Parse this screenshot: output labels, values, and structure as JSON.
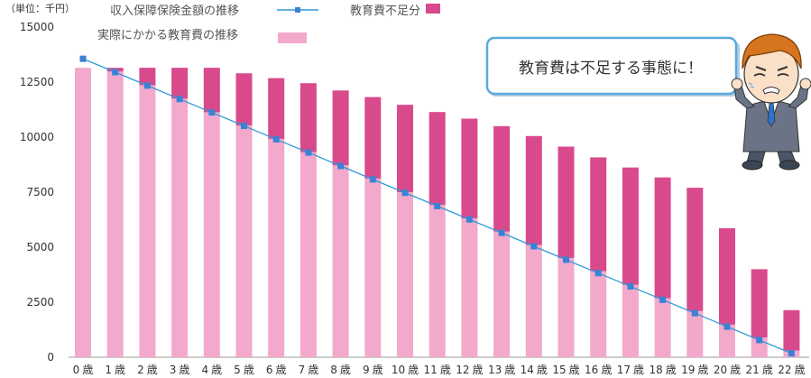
{
  "chart_data": {
    "type": "bar",
    "unit_label": "（単位：千円）",
    "categories": [
      "0歳",
      "1歳",
      "2歳",
      "3歳",
      "4歳",
      "5歳",
      "6歳",
      "7歳",
      "8歳",
      "9歳",
      "10歳",
      "11歳",
      "12歳",
      "13歳",
      "14歳",
      "15歳",
      "16歳",
      "17歳",
      "18歳",
      "19歳",
      "20歳",
      "21歳",
      "22歳"
    ],
    "y_ticks": [
      0,
      2500,
      5000,
      7500,
      10000,
      12500,
      15000
    ],
    "ylim": [
      0,
      15000
    ],
    "series": [
      {
        "name": "実際にかかる教育費の推移",
        "kind": "bar",
        "color": "#f2a9cc",
        "values": [
          13150,
          12980,
          12360,
          11750,
          11130,
          10530,
          9920,
          9320,
          8720,
          8120,
          7500,
          6920,
          6310,
          5710,
          5100,
          4510,
          3910,
          3290,
          2680,
          2100,
          1480,
          900,
          300
        ]
      },
      {
        "name": "教育費不足分",
        "kind": "bar-stack",
        "color": "#d94a8c",
        "values": [
          0,
          170,
          790,
          1400,
          2020,
          2370,
          2760,
          3130,
          3400,
          3700,
          3970,
          4220,
          4530,
          4790,
          4950,
          5060,
          5170,
          5330,
          5490,
          5600,
          4380,
          3100,
          1840
        ]
      },
      {
        "name": "収入保障保険金額の推移",
        "kind": "line",
        "color": "#2e9bd6",
        "marker_color": "#3b82d6",
        "values": [
          13560,
          12950,
          12340,
          11730,
          11120,
          10510,
          9900,
          9300,
          8690,
          8080,
          7470,
          6870,
          6260,
          5650,
          5040,
          4430,
          3820,
          3220,
          2610,
          2000,
          1390,
          780,
          180
        ]
      }
    ]
  },
  "callout": {
    "text": "教育費は不足する事態に！"
  }
}
